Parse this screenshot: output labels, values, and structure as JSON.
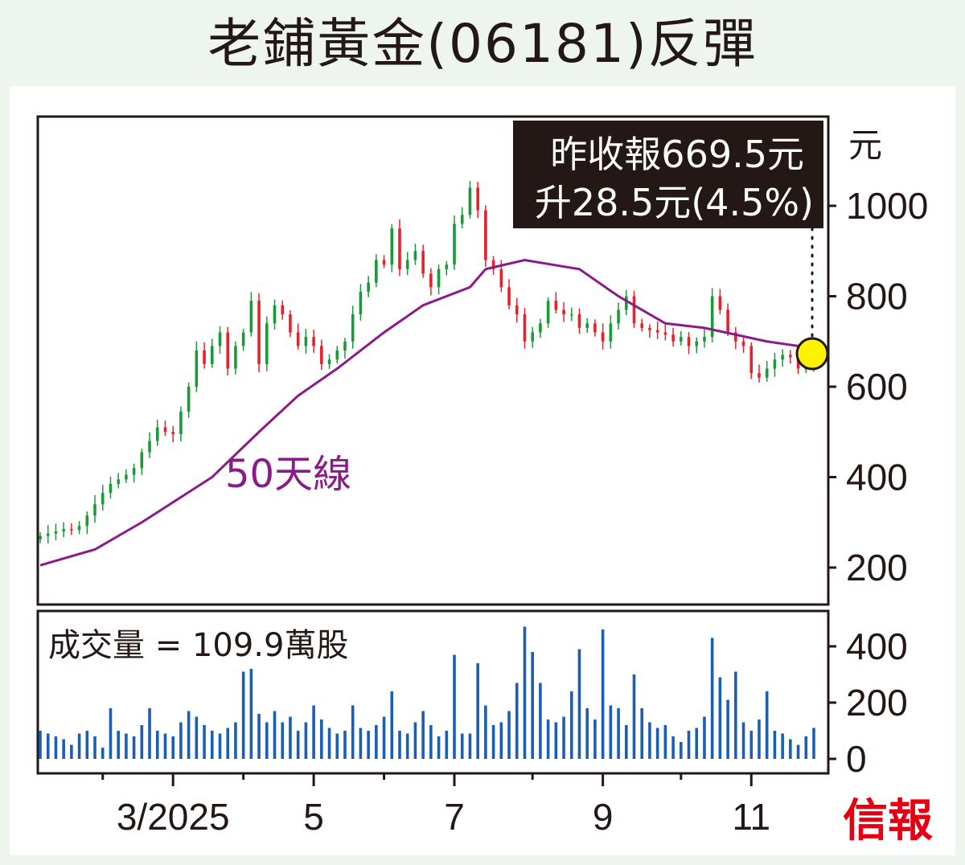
{
  "title": "老鋪黃金(06181)反彈",
  "chart_data": {
    "type": "candlestick",
    "title": "老鋪黃金(06181)反彈",
    "price_axis": {
      "unit_label": "元",
      "ticks": [
        200,
        400,
        600,
        800,
        1000
      ],
      "ylim": [
        130,
        1205
      ]
    },
    "volume_axis": {
      "ticks": [
        0,
        200,
        400
      ],
      "ylim": [
        0,
        530
      ]
    },
    "x_ticks": [
      {
        "label": "3/2025",
        "index": 17
      },
      {
        "label": "5",
        "index": 35
      },
      {
        "label": "7",
        "index": 53
      },
      {
        "label": "9",
        "index": 72
      },
      {
        "label": "11",
        "index": 91
      }
    ],
    "x_minor_ticks": [
      8,
      26,
      44,
      63,
      82
    ],
    "closes": [
      270,
      275,
      280,
      285,
      283,
      292,
      315,
      340,
      365,
      385,
      395,
      405,
      420,
      455,
      480,
      510,
      500,
      495,
      545,
      600,
      680,
      650,
      690,
      720,
      640,
      690,
      720,
      790,
      650,
      740,
      780,
      760,
      720,
      690,
      710,
      690,
      650,
      660,
      680,
      700,
      760,
      810,
      830,
      880,
      870,
      950,
      860,
      880,
      900,
      850,
      820,
      860,
      870,
      960,
      980,
      1040,
      990,
      880,
      860,
      820,
      780,
      760,
      700,
      720,
      740,
      790,
      770,
      760,
      760,
      730,
      740,
      720,
      700,
      740,
      770,
      800,
      740,
      730,
      725,
      720,
      715,
      700,
      710,
      690,
      700,
      710,
      800,
      770,
      720,
      700,
      690,
      630,
      620,
      640,
      660,
      670,
      665,
      640,
      641,
      669.5
    ],
    "volumes": [
      100,
      90,
      80,
      70,
      50,
      90,
      100,
      80,
      40,
      180,
      100,
      90,
      80,
      120,
      180,
      100,
      90,
      80,
      130,
      170,
      150,
      120,
      100,
      90,
      110,
      130,
      310,
      320,
      160,
      130,
      170,
      130,
      150,
      100,
      130,
      190,
      140,
      110,
      90,
      100,
      190,
      110,
      100,
      120,
      150,
      240,
      100,
      90,
      130,
      170,
      120,
      80,
      100,
      370,
      90,
      90,
      340,
      190,
      120,
      130,
      170,
      270,
      470,
      380,
      270,
      140,
      130,
      150,
      240,
      390,
      180,
      140,
      460,
      190,
      180,
      120,
      300,
      180,
      130,
      110,
      120,
      80,
      60,
      100,
      110,
      150,
      430,
      290,
      210,
      310,
      130,
      100,
      140,
      240,
      100,
      90,
      70,
      50,
      80,
      110
    ],
    "ma50": {
      "label": "50天線",
      "points": [
        [
          0,
          205
        ],
        [
          7,
          240
        ],
        [
          13,
          300
        ],
        [
          22,
          400
        ],
        [
          28,
          500
        ],
        [
          33,
          580
        ],
        [
          38,
          640
        ],
        [
          44,
          720
        ],
        [
          49,
          780
        ],
        [
          55,
          820
        ],
        [
          57,
          860
        ],
        [
          62,
          880
        ],
        [
          69,
          860
        ],
        [
          74,
          800
        ],
        [
          80,
          740
        ],
        [
          85,
          730
        ],
        [
          93,
          700
        ],
        [
          99,
          685
        ]
      ]
    },
    "annotation": {
      "line1": "昨收報669.5元",
      "line2": "升28.5元(4.5%)"
    },
    "volume_label": "成交量 = 109.9萬股",
    "colors": {
      "up": "#1a9a3a",
      "down": "#e8202a",
      "ma": "#8b1a8b",
      "volume": "#1a5fb4",
      "highlight": "#fff200"
    }
  },
  "logo": "信報"
}
